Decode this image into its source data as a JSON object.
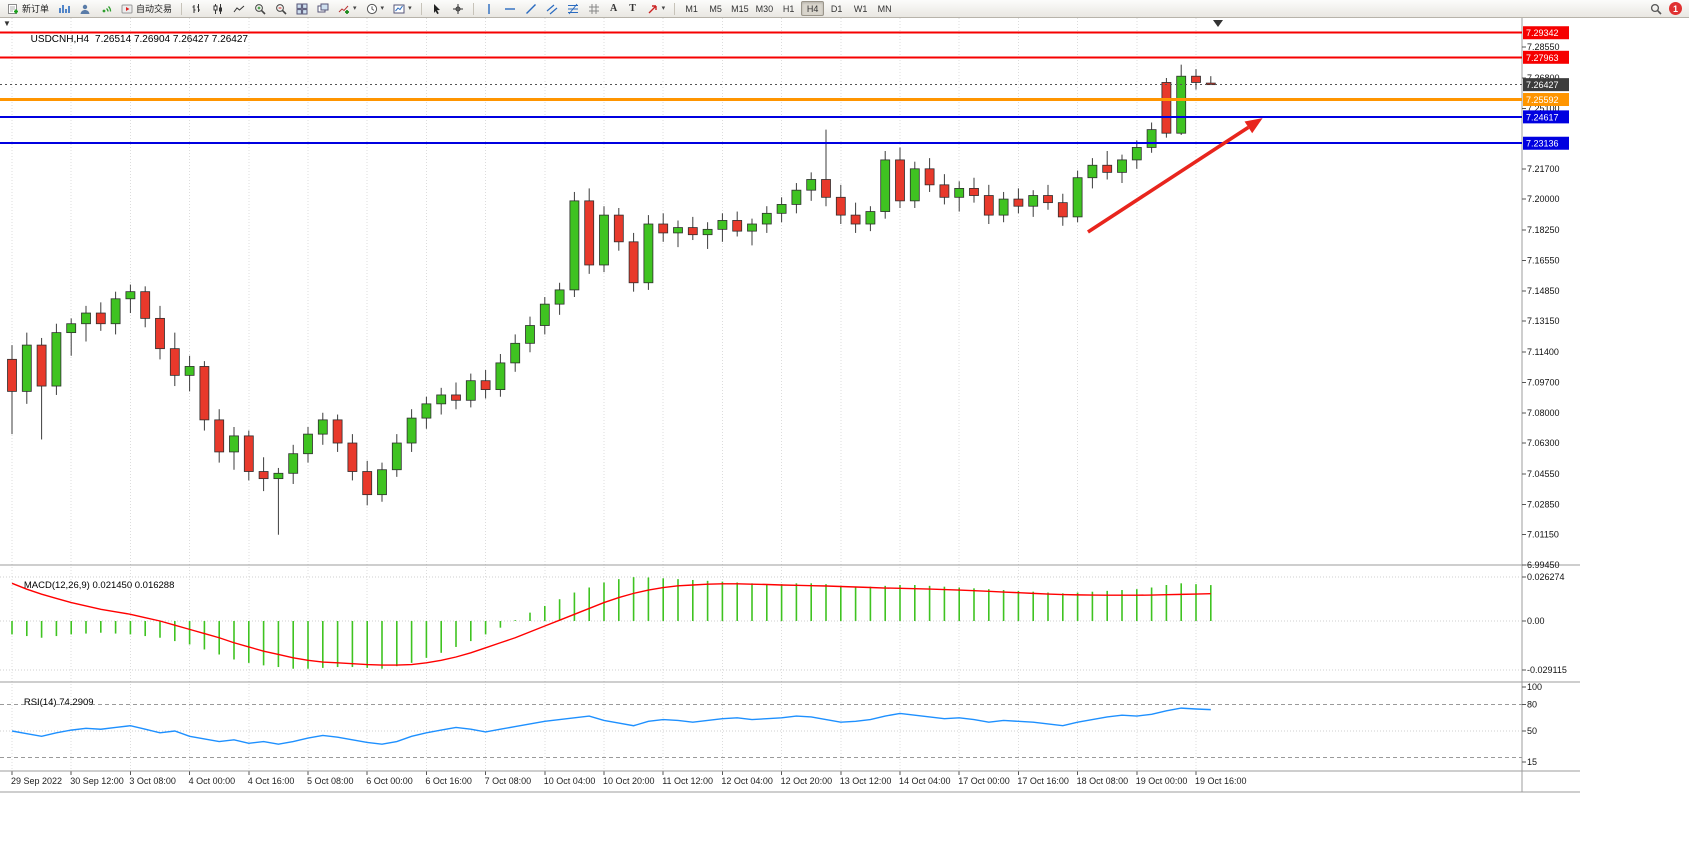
{
  "toolbar": {
    "new_order": "新订单",
    "autotrading": "自动交易",
    "text_tool": "A",
    "label_tool": "T",
    "timeframes": [
      "M1",
      "M5",
      "M15",
      "M30",
      "H1",
      "H4",
      "D1",
      "W1",
      "MN"
    ],
    "active_timeframe": "H4",
    "notification_count": "1",
    "toolbar_icons": [
      "new-order-icon",
      "charts-icon",
      "profile-icon",
      "signals-icon",
      "autotrading-icon",
      "bar-chart-icon",
      "candlestick-icon",
      "line-chart-icon",
      "zoom-in-icon",
      "zoom-out-icon",
      "tile-windows-icon",
      "cascade-windows-icon",
      "add-indicator-icon",
      "periods-icon",
      "templates-icon",
      "cursor-icon",
      "crosshair-icon",
      "vertical-line-icon",
      "horizontal-line-icon",
      "trendline-icon",
      "channel-icon",
      "fibonacci-icon",
      "grid-icon",
      "text-icon",
      "text-label-icon",
      "arrows-icon",
      "search-icon",
      "notification-badge"
    ]
  },
  "chart": {
    "symbol_period": "USDCNH,H4",
    "ohlc": "7.26514 7.26904 7.26427 7.26427"
  },
  "chart_data": {
    "type": "candlestick",
    "title": "USDCNH,H4",
    "timeframe": "H4",
    "current_ohlc": {
      "open": "7.26514",
      "high": "7.26904",
      "low": "7.26427",
      "close": "7.26427"
    },
    "candles_per_label": 4,
    "x_labels": [
      "29 Sep 2022",
      "30 Sep 12:00",
      "3 Oct 08:00",
      "4 Oct 00:00",
      "4 Oct 16:00",
      "5 Oct 08:00",
      "6 Oct 00:00",
      "6 Oct 16:00",
      "7 Oct 08:00",
      "10 Oct 04:00",
      "10 Oct 20:00",
      "11 Oct 12:00",
      "12 Oct 04:00",
      "12 Oct 20:00",
      "13 Oct 12:00",
      "14 Oct 04:00",
      "17 Oct 00:00",
      "17 Oct 16:00",
      "18 Oct 08:00",
      "19 Oct 00:00",
      "19 Oct 16:00"
    ],
    "price_axis": {
      "min": 6.9945,
      "max": 7.2995,
      "ticks": [
        "7.28550",
        "7.26800",
        "7.25100",
        "7.21700",
        "7.20000",
        "7.18250",
        "7.16550",
        "7.14850",
        "7.13150",
        "7.11400",
        "7.09700",
        "7.08000",
        "7.06300",
        "7.04550",
        "7.02850",
        "7.01150",
        "6.99450"
      ]
    },
    "levels": [
      {
        "label": "7.29342",
        "value": 7.29342,
        "color": "#f60000",
        "line": "solid",
        "width": 2
      },
      {
        "label": "7.27963",
        "value": 7.27963,
        "color": "#f60000",
        "line": "solid",
        "width": 2
      },
      {
        "label": "7.26427",
        "value": 7.26427,
        "color": "#555555",
        "line": "dotted",
        "width": 1,
        "box": "#3c3c3c",
        "role": "current-price"
      },
      {
        "label": "7.25592",
        "value": 7.25592,
        "color": "#ff9500",
        "line": "solid",
        "width": 3
      },
      {
        "label": "7.24617",
        "value": 7.24617,
        "color": "#0000e0",
        "line": "solid",
        "width": 2
      },
      {
        "label": "7.23136",
        "value": 7.23136,
        "color": "#0000e0",
        "line": "solid",
        "width": 2
      }
    ],
    "candles": [
      [
        7.11,
        7.118,
        7.068,
        7.092
      ],
      [
        7.092,
        7.125,
        7.085,
        7.118
      ],
      [
        7.118,
        7.122,
        7.065,
        7.095
      ],
      [
        7.095,
        7.13,
        7.09,
        7.125
      ],
      [
        7.125,
        7.133,
        7.112,
        7.13
      ],
      [
        7.13,
        7.14,
        7.12,
        7.136
      ],
      [
        7.136,
        7.142,
        7.126,
        7.13
      ],
      [
        7.13,
        7.148,
        7.124,
        7.144
      ],
      [
        7.144,
        7.152,
        7.136,
        7.148
      ],
      [
        7.148,
        7.151,
        7.128,
        7.133
      ],
      [
        7.133,
        7.14,
        7.11,
        7.116
      ],
      [
        7.116,
        7.125,
        7.095,
        7.101
      ],
      [
        7.101,
        7.112,
        7.092,
        7.106
      ],
      [
        7.106,
        7.109,
        7.07,
        7.076
      ],
      [
        7.076,
        7.082,
        7.052,
        7.058
      ],
      [
        7.058,
        7.072,
        7.048,
        7.067
      ],
      [
        7.067,
        7.07,
        7.042,
        7.047
      ],
      [
        7.047,
        7.055,
        7.036,
        7.043
      ],
      [
        7.043,
        7.049,
        7.0115,
        7.046
      ],
      [
        7.046,
        7.062,
        7.04,
        7.057
      ],
      [
        7.057,
        7.072,
        7.052,
        7.068
      ],
      [
        7.068,
        7.08,
        7.062,
        7.076
      ],
      [
        7.076,
        7.079,
        7.058,
        7.063
      ],
      [
        7.063,
        7.068,
        7.042,
        7.047
      ],
      [
        7.047,
        7.053,
        7.028,
        7.034
      ],
      [
        7.034,
        7.052,
        7.03,
        7.048
      ],
      [
        7.048,
        7.068,
        7.044,
        7.063
      ],
      [
        7.063,
        7.082,
        7.058,
        7.077
      ],
      [
        7.077,
        7.089,
        7.071,
        7.085
      ],
      [
        7.085,
        7.094,
        7.079,
        7.09
      ],
      [
        7.09,
        7.097,
        7.082,
        7.087
      ],
      [
        7.087,
        7.102,
        7.083,
        7.098
      ],
      [
        7.098,
        7.104,
        7.088,
        7.093
      ],
      [
        7.093,
        7.113,
        7.089,
        7.108
      ],
      [
        7.108,
        7.124,
        7.103,
        7.119
      ],
      [
        7.119,
        7.134,
        7.114,
        7.129
      ],
      [
        7.129,
        7.145,
        7.124,
        7.141
      ],
      [
        7.141,
        7.153,
        7.135,
        7.149
      ],
      [
        7.149,
        7.204,
        7.145,
        7.199
      ],
      [
        7.199,
        7.206,
        7.158,
        7.163
      ],
      [
        7.163,
        7.196,
        7.159,
        7.191
      ],
      [
        7.191,
        7.195,
        7.171,
        7.176
      ],
      [
        7.176,
        7.181,
        7.148,
        7.153
      ],
      [
        7.153,
        7.191,
        7.149,
        7.186
      ],
      [
        7.186,
        7.192,
        7.176,
        7.181
      ],
      [
        7.181,
        7.188,
        7.173,
        7.184
      ],
      [
        7.184,
        7.19,
        7.177,
        7.18
      ],
      [
        7.18,
        7.187,
        7.172,
        7.183
      ],
      [
        7.183,
        7.192,
        7.176,
        7.188
      ],
      [
        7.188,
        7.193,
        7.179,
        7.182
      ],
      [
        7.182,
        7.189,
        7.174,
        7.186
      ],
      [
        7.186,
        7.196,
        7.181,
        7.192
      ],
      [
        7.192,
        7.201,
        7.187,
        7.197
      ],
      [
        7.197,
        7.209,
        7.192,
        7.205
      ],
      [
        7.205,
        7.215,
        7.199,
        7.211
      ],
      [
        7.211,
        7.239,
        7.196,
        7.201
      ],
      [
        7.201,
        7.208,
        7.186,
        7.191
      ],
      [
        7.191,
        7.198,
        7.181,
        7.186
      ],
      [
        7.186,
        7.196,
        7.182,
        7.193
      ],
      [
        7.193,
        7.227,
        7.189,
        7.222
      ],
      [
        7.222,
        7.229,
        7.195,
        7.199
      ],
      [
        7.199,
        7.221,
        7.195,
        7.217
      ],
      [
        7.217,
        7.223,
        7.204,
        7.208
      ],
      [
        7.208,
        7.214,
        7.197,
        7.201
      ],
      [
        7.201,
        7.21,
        7.193,
        7.206
      ],
      [
        7.206,
        7.212,
        7.198,
        7.202
      ],
      [
        7.202,
        7.208,
        7.186,
        7.191
      ],
      [
        7.191,
        7.204,
        7.187,
        7.2
      ],
      [
        7.2,
        7.206,
        7.192,
        7.196
      ],
      [
        7.196,
        7.205,
        7.19,
        7.202
      ],
      [
        7.202,
        7.208,
        7.194,
        7.198
      ],
      [
        7.198,
        7.203,
        7.185,
        7.19
      ],
      [
        7.19,
        7.216,
        7.187,
        7.212
      ],
      [
        7.212,
        7.223,
        7.206,
        7.219
      ],
      [
        7.219,
        7.227,
        7.211,
        7.215
      ],
      [
        7.215,
        7.225,
        7.209,
        7.222
      ],
      [
        7.222,
        7.233,
        7.217,
        7.229
      ],
      [
        7.229,
        7.243,
        7.226,
        7.239
      ],
      [
        7.2655,
        7.268,
        7.2345,
        7.237
      ],
      [
        7.237,
        7.2755,
        7.236,
        7.269
      ],
      [
        7.269,
        7.273,
        7.2615,
        7.2655
      ],
      [
        7.26514,
        7.26904,
        7.26427,
        7.26427
      ]
    ],
    "macd": {
      "title": "MACD(12,26,9)",
      "main_value": "0.021450",
      "signal_value": "0.016288",
      "scale": [
        {
          "label": "0.026274",
          "value": 0.026274
        },
        {
          "label": "0.00",
          "value": 0
        },
        {
          "label": "-0.029115",
          "value": -0.029115
        }
      ],
      "histogram": [
        -0.008,
        -0.009,
        -0.01,
        -0.009,
        -0.008,
        -0.0075,
        -0.007,
        -0.0075,
        -0.008,
        -0.009,
        -0.01,
        -0.012,
        -0.014,
        -0.017,
        -0.02,
        -0.023,
        -0.025,
        -0.0265,
        -0.0275,
        -0.0285,
        -0.0285,
        -0.028,
        -0.0275,
        -0.0275,
        -0.028,
        -0.0285,
        -0.027,
        -0.025,
        -0.022,
        -0.019,
        -0.0155,
        -0.012,
        -0.008,
        -0.004,
        0.0005,
        0.005,
        0.009,
        0.013,
        0.017,
        0.02,
        0.023,
        0.025,
        0.0262,
        0.026,
        0.0255,
        0.025,
        0.0245,
        0.024,
        0.0235,
        0.023,
        0.0225,
        0.022,
        0.022,
        0.0225,
        0.0225,
        0.022,
        0.021,
        0.0205,
        0.0205,
        0.021,
        0.0215,
        0.0215,
        0.021,
        0.0205,
        0.02,
        0.0195,
        0.019,
        0.0185,
        0.018,
        0.0175,
        0.017,
        0.0165,
        0.017,
        0.0175,
        0.018,
        0.0185,
        0.019,
        0.02,
        0.0215,
        0.0225,
        0.022,
        0.02145
      ],
      "signal": [
        0.0225,
        0.019,
        0.016,
        0.0135,
        0.011,
        0.009,
        0.007,
        0.0055,
        0.004,
        0.002,
        0.0,
        -0.0025,
        -0.005,
        -0.0075,
        -0.01,
        -0.013,
        -0.0155,
        -0.018,
        -0.02,
        -0.022,
        -0.0235,
        -0.0245,
        -0.025,
        -0.0255,
        -0.026,
        -0.0263,
        -0.0263,
        -0.026,
        -0.025,
        -0.0235,
        -0.0215,
        -0.019,
        -0.016,
        -0.013,
        -0.01,
        -0.0065,
        -0.003,
        0.0005,
        0.004,
        0.0075,
        0.011,
        0.014,
        0.0165,
        0.0185,
        0.02,
        0.021,
        0.0215,
        0.022,
        0.0222,
        0.0222,
        0.022,
        0.0218,
        0.0215,
        0.0213,
        0.0211,
        0.0209,
        0.0206,
        0.0203,
        0.02,
        0.0197,
        0.0195,
        0.0193,
        0.0191,
        0.0188,
        0.0185,
        0.0181,
        0.0177,
        0.0173,
        0.0169,
        0.0165,
        0.0161,
        0.0158,
        0.0156,
        0.0155,
        0.0154,
        0.0154,
        0.0154,
        0.0155,
        0.0157,
        0.0159,
        0.0161,
        0.016288
      ]
    },
    "rsi": {
      "title": "RSI(14)",
      "value_label": "74.2909",
      "scale": [
        {
          "label": "100",
          "value": 100
        },
        {
          "label": "80",
          "value": 80
        },
        {
          "label": "50",
          "value": 50
        },
        {
          "label": "15",
          "value": 15
        }
      ],
      "grid": [
        {
          "value": 80,
          "style": "dash"
        },
        {
          "value": 50,
          "style": "dot"
        },
        {
          "value": 20,
          "style": "dash"
        }
      ],
      "values": [
        50,
        47,
        44,
        48,
        51,
        53,
        52,
        54,
        56,
        52,
        48,
        50,
        44,
        41,
        38,
        40,
        36,
        38,
        35,
        38,
        42,
        45,
        43,
        40,
        37,
        35,
        38,
        44,
        48,
        51,
        54,
        52,
        49,
        52,
        55,
        58,
        61,
        63,
        65,
        67,
        62,
        59,
        56,
        61,
        63,
        62,
        60,
        62,
        64,
        65,
        63,
        64,
        65,
        67,
        66,
        63,
        60,
        61,
        63,
        67,
        70,
        68,
        66,
        64,
        65,
        63,
        60,
        62,
        61,
        60,
        58,
        56,
        60,
        63,
        66,
        68,
        67,
        69,
        73,
        76,
        75,
        74.29
      ]
    },
    "trend_arrow": {
      "from": {
        "index": 72.7,
        "price": 7.1815
      },
      "to": {
        "index": 84.5,
        "price": 7.2455
      },
      "color": "#e8251d"
    },
    "colors": {
      "bull": "#3fc321",
      "bear": "#e8392b",
      "wick": "#3c3c3c",
      "outline": "#2e2e2e",
      "macd_histogram": "#3fc321",
      "macd_signal": "#ff0000",
      "rsi": "#1e90ff",
      "grid": "#dcdcdc",
      "level_blue": "#0000e0",
      "level_red": "#f60000",
      "level_orange": "#ff9500"
    }
  }
}
